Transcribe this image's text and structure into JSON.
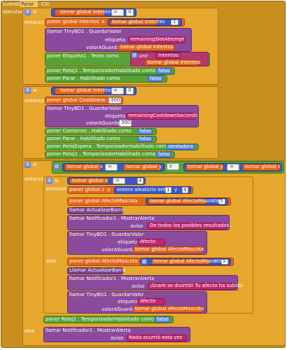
{
  "event": {
    "when": "cuando",
    "component": "Parar",
    "event": ".Clic",
    "do": "ejecutar"
  },
  "kw": {
    "if": "si",
    "then": "entonces",
    "else": "else",
    "do": "ejecutar"
  },
  "b1": {
    "get_var": "tomar global Intentos",
    "op": ">",
    "num": "0",
    "set_var": "poner global Intentos",
    "a": "a",
    "minus": "-",
    "one": "1",
    "call_db": "llamar TinyBD1 . GuardarValor",
    "tag_lbl": "etiqueta",
    "tag_val": "remainingSlotAttempt",
    "store_lbl": "valorAGuardar",
    "store_val": "tomar global Intentos",
    "set_label": "poner Etiqueta1 . Texto como",
    "join": "unir",
    "join1": "Intentos: ",
    "join2": "tomar global Intentos",
    "set_clock": "poner Reloj1 . TemporizadorHabilitado como",
    "false": "falso",
    "set_stop": "poner Parar . Habilitado como",
    "false2": "falso"
  },
  "b2": {
    "get_var": "tomar global Intentos",
    "op": "=",
    "num": "0",
    "set_cool": "poner global Cooldown",
    "a": "a",
    "cool_val": "300",
    "call_db": "llamar TinyBD1 . GuardarValor",
    "tag_lbl": "etiqueta",
    "tag_val": "remainingCooldownSeconds",
    "store_lbl": "valorAGuardar",
    "store_val": "300",
    "set_start": "poner Comienzo . Habilitado como",
    "f1": "falso",
    "set_stop": "poner Parar . Habilitado como",
    "f2": "falso",
    "set_wait": "poner RelojEspera . TemporizadorHabilitado como",
    "t1": "verdadero",
    "set_clock": "poner Reloj1 . TemporizadorHabilitado como",
    "f3": "falso"
  },
  "b3": {
    "get_x": "tomar global x",
    "eq": "=",
    "get_y": "tomar global y",
    "and": "y",
    "get_y2": "tomar global y",
    "eq2": "=",
    "get_z": "tomar global z",
    "inner_get_x": "tomar global x",
    "inner_eq": "=",
    "inner_num": "4",
    "set_z": "poner global z",
    "a": "a",
    "rand": "entero aleatorio entre",
    "r1": "1",
    "ry": "y",
    "r2": "4",
    "set_aff": "poner global AfectoMascota",
    "get_aff": "tomar global AfectoMascota",
    "minus": "-",
    "five": "5",
    "call_bar": "llamar ActualizarBarra",
    "call_alert": "llamar Notificador1 . MostrarAlerta",
    "aviso": "aviso",
    "msg_bad": "De todos los posibles resultados...",
    "call_db": "llamar TinyBD1 . GuardarValor",
    "tag_lbl": "etiqueta",
    "tag_val": "Afecto",
    "store_lbl": "valorAGuardar",
    "store_val": "tomar global AfectoMascota",
    "set_aff2": "poner global AfectoMascota",
    "get_aff2": "tomar global AfectoMascota",
    "plus": "+",
    "five2": "5",
    "call_bar2": "Llamar ActualizarBarra",
    "call_alert2": "llamar Notificador1 . MostrarAlerta",
    "aviso2": "aviso",
    "msg_good": "¡Snark se divirtió! Tu afecto ha subido",
    "call_db2": "llamar TinyBD1 . GuardarValor",
    "tag_lbl2": "etiqueta",
    "tag_val2": "Afecto",
    "store_lbl2": "valorAGuardar",
    "store_val2": "tomar global AfectoMascota",
    "set_clock": "poner Reloj1 . TemporizadorHabilitado como",
    "f1": "falso",
    "call_alert3": "llamar Notificador1 . MostrarAlerta",
    "aviso3": "aviso",
    "msg_none": "Nada ocurrió esta vez"
  }
}
